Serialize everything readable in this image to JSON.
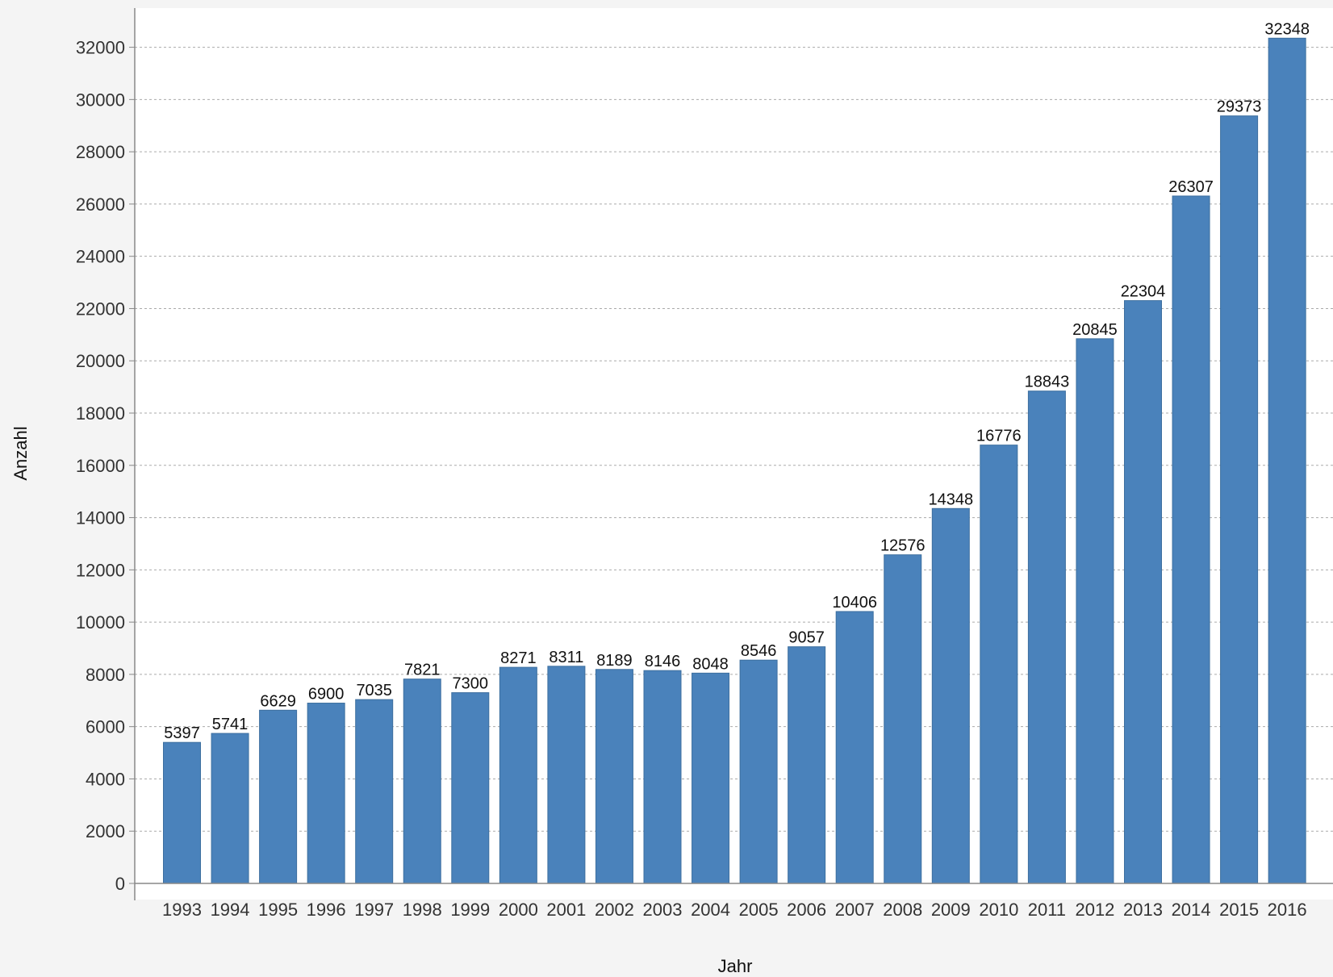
{
  "chart_data": {
    "type": "bar",
    "xlabel": "Jahr",
    "ylabel": "Anzahl",
    "categories": [
      "1993",
      "1994",
      "1995",
      "1996",
      "1997",
      "1998",
      "1999",
      "2000",
      "2001",
      "2002",
      "2003",
      "2004",
      "2005",
      "2006",
      "2007",
      "2008",
      "2009",
      "2010",
      "2011",
      "2012",
      "2013",
      "2014",
      "2015",
      "2016"
    ],
    "values": [
      5397,
      5741,
      6629,
      6900,
      7035,
      7821,
      7300,
      8271,
      8311,
      8189,
      8146,
      8048,
      8546,
      9057,
      10406,
      12576,
      14348,
      16776,
      18843,
      20845,
      22304,
      26307,
      29373,
      32348
    ],
    "value_labels": [
      "5397",
      "5741",
      "6629",
      "6900",
      "7035",
      "7821",
      "7300",
      "8271",
      "8311",
      "8189",
      "8146",
      "8048",
      "8546",
      "9057",
      "10406",
      "12576",
      "14348",
      "16776",
      "18843",
      "20845",
      "22304",
      "26307",
      "29373",
      "32348"
    ],
    "ylim": [
      0,
      33500
    ],
    "yticks": [
      0,
      2000,
      4000,
      6000,
      8000,
      10000,
      12000,
      14000,
      16000,
      18000,
      20000,
      22000,
      24000,
      26000,
      28000,
      30000,
      32000
    ],
    "ytick_labels": [
      "0",
      "2000",
      "4000",
      "6000",
      "8000",
      "10000",
      "12000",
      "14000",
      "16000",
      "18000",
      "20000",
      "22000",
      "24000",
      "26000",
      "28000",
      "30000",
      "32000"
    ],
    "grid": true,
    "legend": "none",
    "colors": {
      "bar": "#4a82bb",
      "bar_edge": "#3d6f9f",
      "grid": "#aaaaaa",
      "axis": "#888888",
      "plot_background": "#ffffff",
      "page_background": "#f4f4f4"
    }
  }
}
